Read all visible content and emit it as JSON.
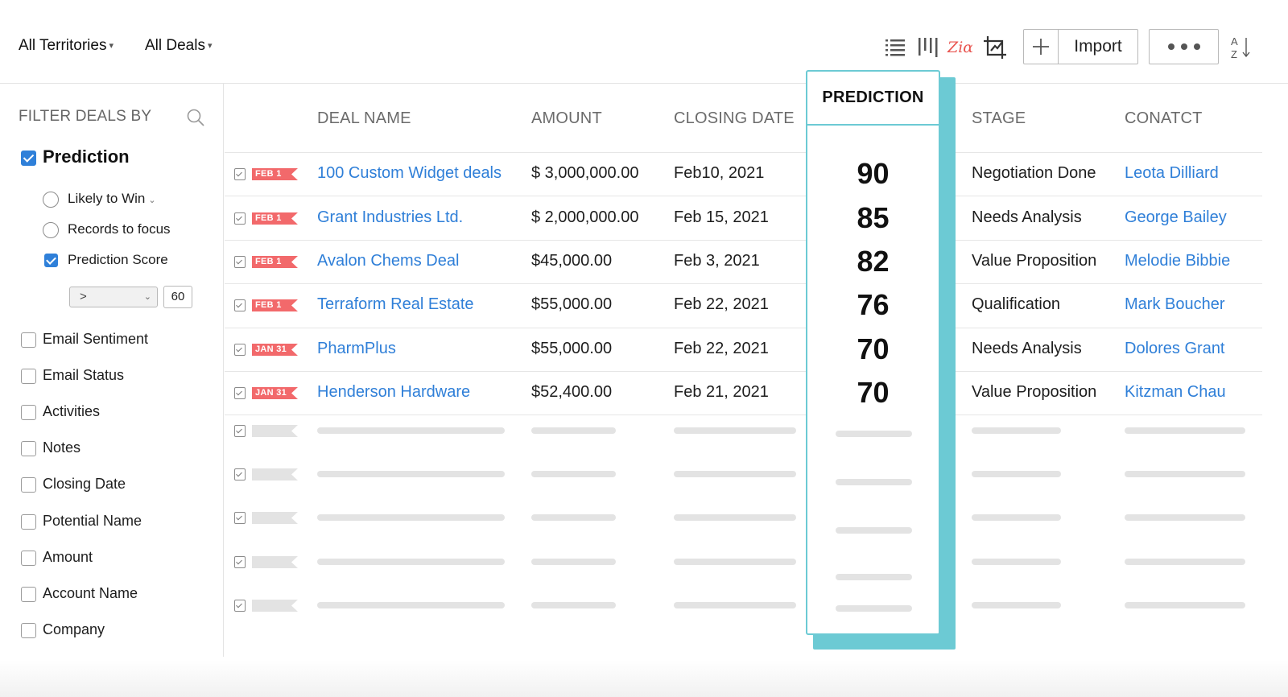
{
  "header": {
    "territory_label": "All Territories",
    "deals_label": "All Deals",
    "import_label": "Import",
    "icons": [
      "list-view-icon",
      "kanban-view-icon",
      "zia-icon",
      "chart-view-icon",
      "add-icon",
      "more-icon",
      "sort-icon"
    ],
    "zia_text": "Ziα"
  },
  "sidebar": {
    "title": "FILTER DEALS BY",
    "prediction": {
      "label": "Prediction",
      "checked": true
    },
    "sub_options": [
      {
        "label": "Likely to Win",
        "type": "radio"
      },
      {
        "label": "Records to focus",
        "type": "radio"
      },
      {
        "label": "Prediction Score",
        "type": "checkbox",
        "checked": true
      }
    ],
    "operator": ">",
    "score_value": "60",
    "filters": [
      "Email Sentiment",
      "Email Status",
      "Activities",
      "Notes",
      "Closing Date",
      "Potential Name",
      "Amount",
      "Account Name",
      "Company"
    ]
  },
  "table": {
    "headers": {
      "deal_name": "DEAL NAME",
      "amount": "AMOUNT",
      "closing_date": "CLOSING DATE",
      "prediction": "PREDICTION",
      "stage": "STAGE",
      "contact": "CONATCT"
    },
    "rows": [
      {
        "tag": "FEB 1",
        "deal": "100 Custom Widget deals",
        "amount": "$ 3,000,000.00",
        "closing": "Feb10, 2021",
        "prediction": "90",
        "stage": "Negotiation Done",
        "contact": "Leota Dilliard"
      },
      {
        "tag": "FEB 1",
        "deal": "Grant Industries Ltd.",
        "amount": "$ 2,000,000.00",
        "closing": "Feb 15, 2021",
        "prediction": "85",
        "stage": "Needs Analysis",
        "contact": "George Bailey"
      },
      {
        "tag": "FEB 1",
        "deal": "Avalon Chems Deal",
        "amount": "$45,000.00",
        "closing": "Feb 3, 2021",
        "prediction": "82",
        "stage": "Value Proposition",
        "contact": "Melodie Bibbie"
      },
      {
        "tag": "FEB 1",
        "deal": "Terraform Real Estate",
        "amount": "$55,000.00",
        "closing": "Feb 22, 2021",
        "prediction": "76",
        "stage": "Qualification",
        "contact": "Mark Boucher"
      },
      {
        "tag": "JAN 31",
        "deal": "PharmPlus",
        "amount": "$55,000.00",
        "closing": "Feb 22, 2021",
        "prediction": "70",
        "stage": "Needs Analysis",
        "contact": "Dolores Grant"
      },
      {
        "tag": "JAN 31",
        "deal": "Henderson Hardware",
        "amount": "$52,400.00",
        "closing": "Feb 21, 2021",
        "prediction": "70",
        "stage": "Value Proposition",
        "contact": "Kitzman Chau"
      }
    ],
    "placeholder_rows": 5
  },
  "colors": {
    "accent": "#2f80d9",
    "link": "#2f7fd8",
    "prediction_border": "#6ccad4",
    "tag": "#f2696b",
    "zia": "#e8534e"
  }
}
